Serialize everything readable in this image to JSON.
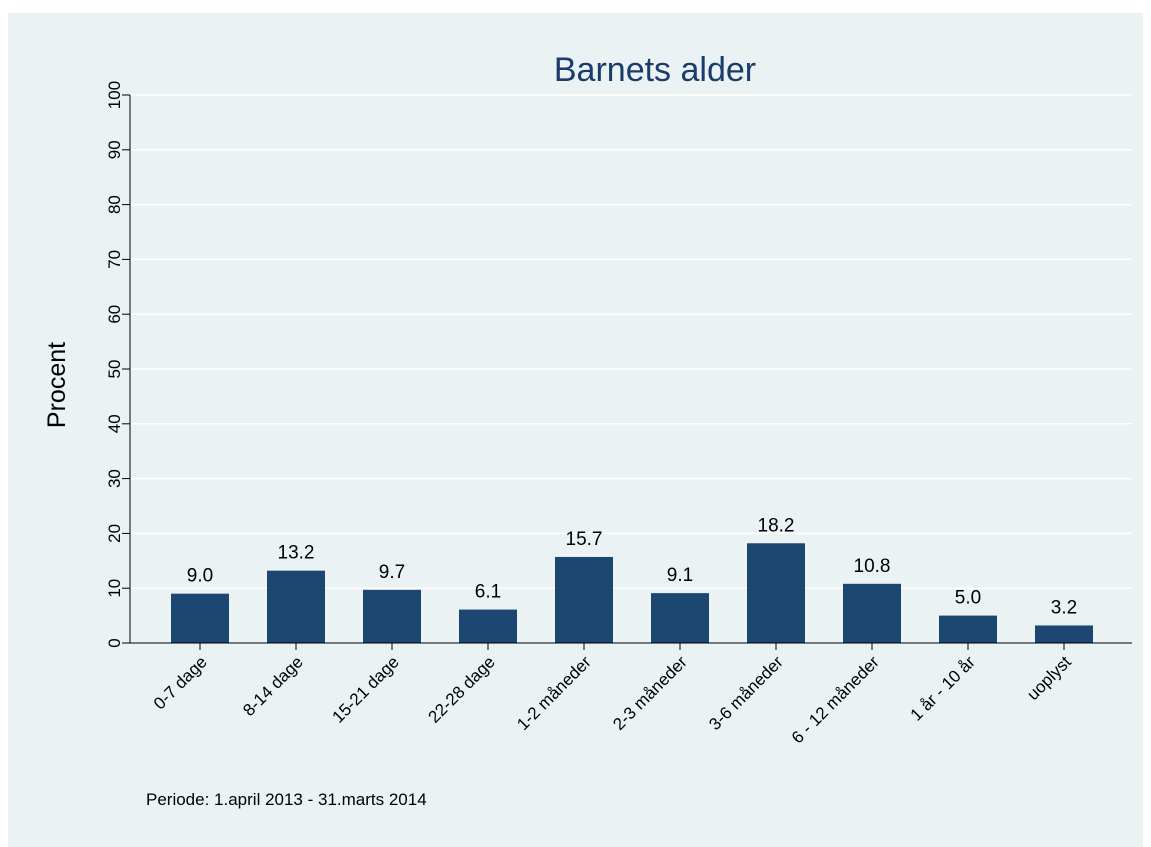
{
  "chart_data": {
    "type": "bar",
    "title": "Barnets alder",
    "xlabel": "",
    "ylabel": "Procent",
    "categories": [
      "0-7 dage",
      "8-14 dage",
      "15-21 dage",
      "22-28 dage",
      "1-2 måneder",
      "2-3 måneder",
      "3-6 måneder",
      "6 - 12 måneder",
      "1 år - 10 år",
      "uoplyst"
    ],
    "values": [
      9.0,
      13.2,
      9.7,
      6.1,
      15.7,
      9.1,
      18.2,
      10.8,
      5.0,
      3.2
    ],
    "value_labels": [
      "9.0",
      "13.2",
      "9.7",
      "6.1",
      "15.7",
      "9.1",
      "18.2",
      "10.8",
      "5.0",
      "3.2"
    ],
    "yticks": [
      0,
      10,
      20,
      30,
      40,
      50,
      60,
      70,
      80,
      90,
      100
    ],
    "ylim": [
      0,
      100
    ],
    "grid": true,
    "legend": "none",
    "bar_color": "#1b4770",
    "grid_color": "#ffffff",
    "note": "Periode: 1.april 2013 - 31.marts 2014"
  }
}
